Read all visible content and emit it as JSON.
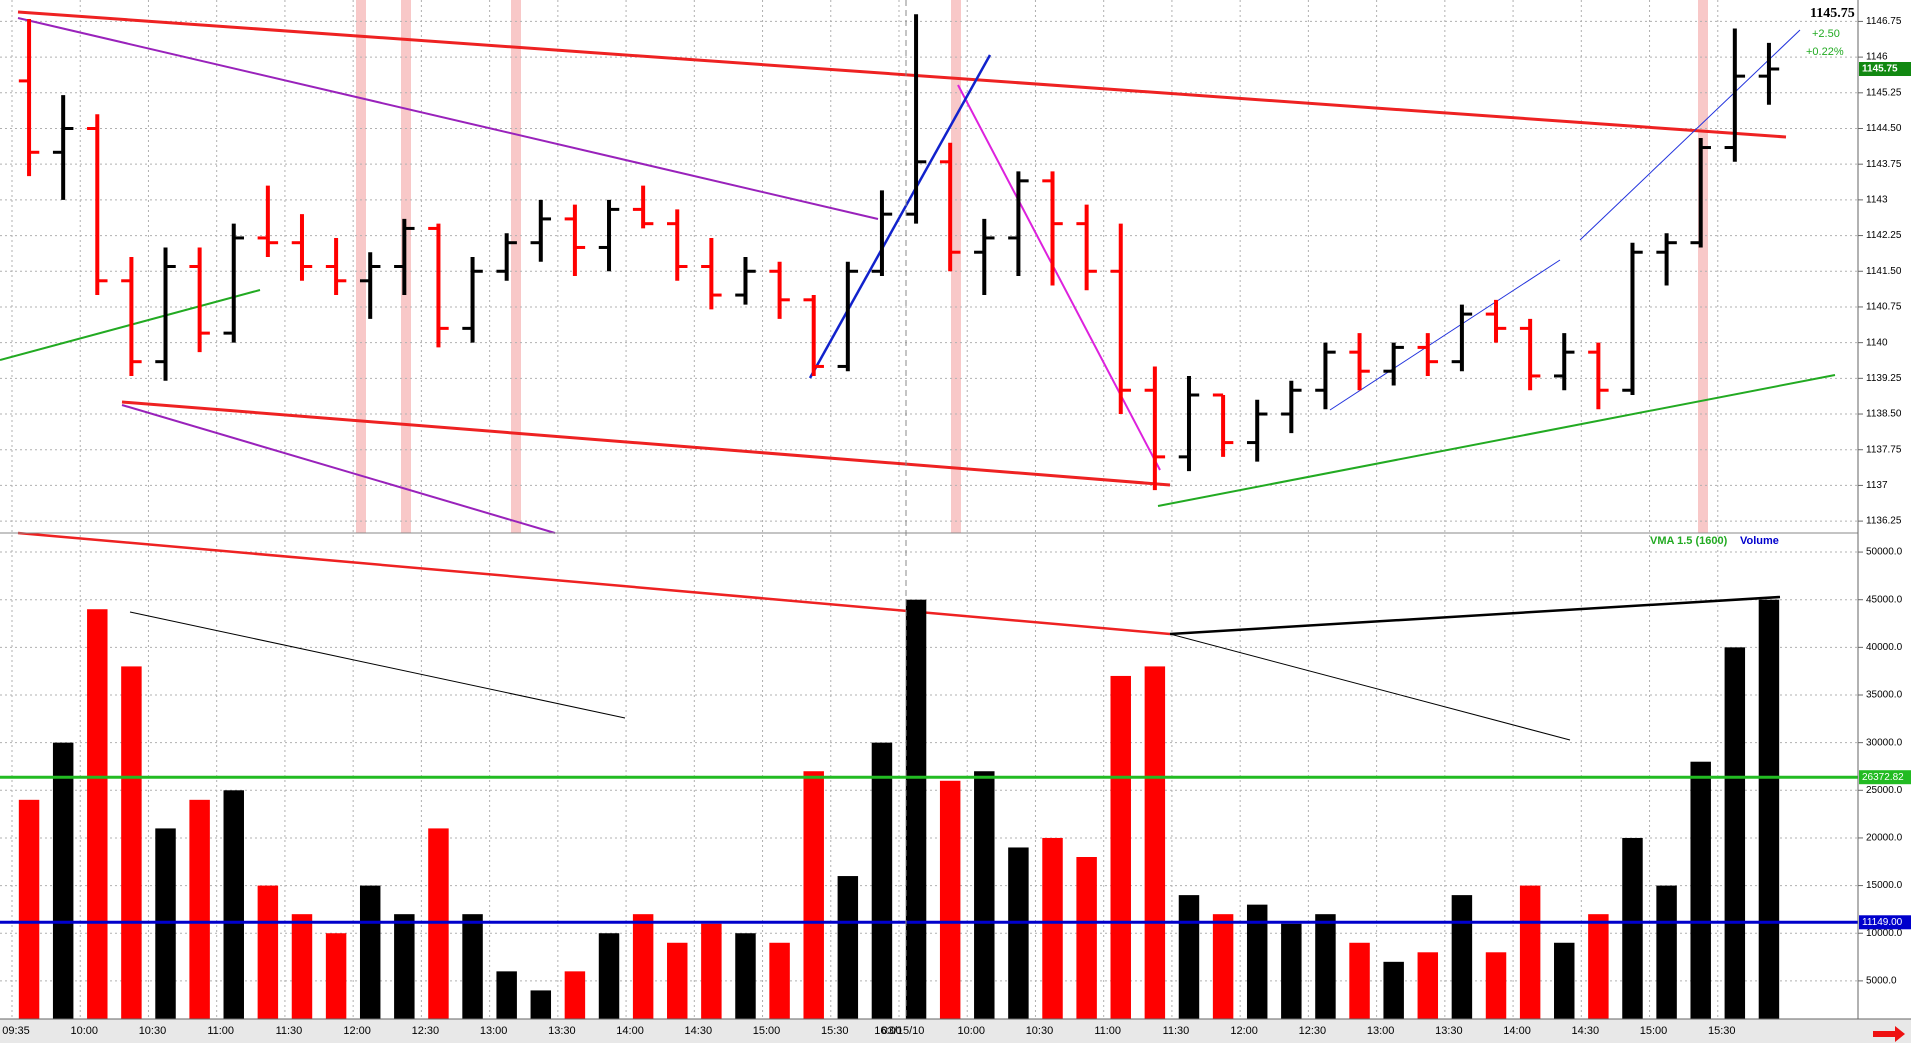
{
  "chart_data": [
    {
      "type": "ohlc",
      "categories": [
        "09:35",
        null,
        "10:00",
        null,
        "10:30",
        null,
        "11:00",
        null,
        "11:30",
        null,
        "12:00",
        null,
        "12:30",
        null,
        "13:00",
        null,
        "13:30",
        null,
        "14:00",
        null,
        "14:30",
        null,
        "15:00",
        null,
        "15:30",
        null,
        "03/15/10",
        null,
        "10:00",
        null,
        "10:30",
        null,
        "11:00",
        null,
        "11:30",
        null,
        "12:00",
        null,
        "12:30",
        null,
        "13:00",
        null,
        "13:30",
        null,
        "14:00",
        null,
        "14:30",
        null,
        "15:00",
        null,
        "15:30",
        null
      ],
      "session_end_label": "16:00",
      "open": [
        1145.5,
        1144,
        1144.5,
        1141.3,
        1139.6,
        1141.6,
        1140.2,
        1142.2,
        1142.1,
        1141.6,
        1141.3,
        1141.6,
        1142.4,
        1140.3,
        1141.5,
        1142.1,
        1142.6,
        1142,
        1142.8,
        1142.5,
        1141.6,
        1141,
        1141.5,
        1140.9,
        1139.5,
        1141.5,
        1142.7,
        1143.8,
        1141.9,
        1142.2,
        1143.4,
        1142.5,
        1141.5,
        1139,
        1137.6,
        1138.9,
        1137.9,
        1138.5,
        1139,
        1139.8,
        1139.4,
        1139.9,
        1139.6,
        1140.6,
        1140.3,
        1139.3,
        1139.8,
        1139,
        1141.9,
        1142.1,
        1144.1,
        1145.6
      ],
      "high": [
        1146.8,
        1145.2,
        1144.8,
        1141.8,
        1142,
        1142,
        1142.5,
        1143.3,
        1142.7,
        1142.2,
        1141.9,
        1142.6,
        1142.5,
        1141.8,
        1142.3,
        1143,
        1142.9,
        1143,
        1143.3,
        1142.8,
        1142.2,
        1141.8,
        1141.7,
        1141,
        1141.7,
        1143.2,
        1146.9,
        1144.2,
        1142.6,
        1143.6,
        1143.6,
        1142.9,
        1142.5,
        1139.5,
        1139.3,
        1138.9,
        1138.8,
        1139.2,
        1140,
        1140.2,
        1140,
        1140.2,
        1140.8,
        1140.9,
        1140.5,
        1140.2,
        1140,
        1142.1,
        1142.3,
        1144.3,
        1146.6,
        1146.3
      ],
      "low": [
        1143.5,
        1143,
        1141,
        1139.3,
        1139.2,
        1139.8,
        1140,
        1141.8,
        1141.3,
        1141,
        1140.5,
        1141,
        1139.9,
        1140,
        1141.3,
        1141.7,
        1141.4,
        1141.5,
        1142.4,
        1141.3,
        1140.7,
        1140.8,
        1140.5,
        1139.3,
        1139.4,
        1141.4,
        1142.5,
        1141.5,
        1141,
        1141.4,
        1141.2,
        1141.1,
        1138.5,
        1136.9,
        1137.3,
        1137.6,
        1137.5,
        1138.1,
        1138.6,
        1139,
        1139.1,
        1139.3,
        1139.4,
        1140,
        1139,
        1139,
        1138.6,
        1138.9,
        1141.2,
        1142,
        1143.8,
        1145
      ],
      "close": [
        1144,
        1144.5,
        1141.3,
        1139.6,
        1141.6,
        1140.2,
        1142.2,
        1142.1,
        1141.6,
        1141.3,
        1141.6,
        1142.4,
        1140.3,
        1141.5,
        1142.1,
        1142.6,
        1142,
        1142.8,
        1142.5,
        1141.6,
        1141,
        1141.5,
        1140.9,
        1139.5,
        1141.5,
        1142.7,
        1143.8,
        1141.9,
        1142.2,
        1143.4,
        1142.5,
        1141.5,
        1139,
        1137.6,
        1138.9,
        1137.9,
        1138.5,
        1139,
        1139.8,
        1139.4,
        1139.9,
        1139.6,
        1140.6,
        1140.3,
        1139.3,
        1139.8,
        1139,
        1141.9,
        1142.1,
        1144.1,
        1145.6,
        1145.75
      ],
      "up_color": "#000000",
      "down_color": "#ff0000",
      "last_price": 1145.75,
      "change_label": "+2.50",
      "change_pct_label": "+0.22%",
      "ylim": [
        1136,
        1147.2
      ],
      "yticks": [
        1136.25,
        1137,
        1137.75,
        {
          "value": 1138.5,
          "label": "1138.50"
        },
        1139.25,
        1140,
        1140.75,
        {
          "value": 1141.5,
          "label": "1141.50"
        },
        1142.25,
        1143,
        1143.75,
        {
          "value": 1144.5,
          "label": "1144.50"
        },
        1145.25,
        1146,
        1146.75
      ],
      "grid": true
    },
    {
      "type": "bar",
      "series": [
        {
          "name": "Volume",
          "color": "#0000cc",
          "values": [
            24000,
            30000,
            44000,
            38000,
            21000,
            24000,
            25000,
            15000,
            12000,
            10000,
            15000,
            12000,
            21000,
            12000,
            6000,
            4000,
            6000,
            10000,
            12000,
            9000,
            11000,
            10000,
            9000,
            27000,
            16000,
            30000,
            45000,
            26000,
            27000,
            19000,
            20000,
            18000,
            37000,
            38000,
            14000,
            12000,
            13000,
            11000,
            12000,
            9000,
            7000,
            8000,
            14000,
            8000,
            15000,
            9000,
            12000,
            20000,
            15000,
            28000,
            40000,
            45000
          ]
        }
      ],
      "average_name": "VMA 1.5 (1600)",
      "average_color": "#22bb22",
      "lines": [
        {
          "value": 26372.82,
          "color": "#22bb22"
        },
        {
          "value": 11149,
          "label": "11149.00",
          "color": "#0000cc"
        }
      ],
      "ylim": [
        1000,
        52000
      ],
      "yticks": [
        {
          "value": 5000,
          "label": "5000.0"
        },
        {
          "value": 10000,
          "label": "10000.0"
        },
        {
          "value": 15000,
          "label": "15000.0"
        },
        {
          "value": 20000,
          "label": "20000.0"
        },
        {
          "value": 25000,
          "label": "25000.0"
        },
        {
          "value": 30000,
          "label": "30000.0"
        },
        {
          "value": 35000,
          "label": "35000.0"
        },
        {
          "value": 40000,
          "label": "40000.0"
        },
        {
          "value": 45000,
          "label": "45000.0"
        },
        {
          "value": 50000,
          "label": "50000.0"
        }
      ],
      "grid": true
    }
  ]
}
